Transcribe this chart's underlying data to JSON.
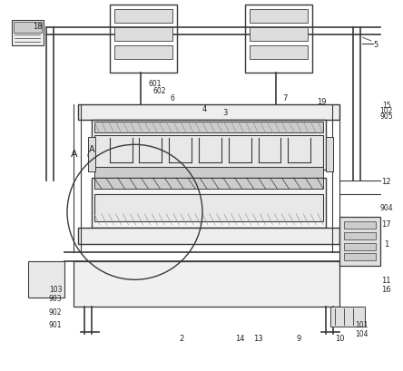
{
  "title": "",
  "bg_color": "#ffffff",
  "line_color": "#3a3a3a",
  "label_color": "#222222",
  "fig_width": 4.44,
  "fig_height": 4.1,
  "dpi": 100
}
